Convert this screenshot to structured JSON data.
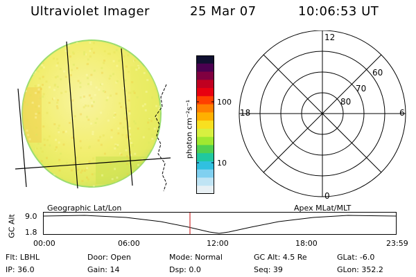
{
  "header": {
    "instrument": "Ultraviolet Imager",
    "date": "25 Mar 07",
    "time": "10:06:53 UT"
  },
  "colorbar": {
    "label": "photon cm⁻²s⁻¹",
    "ticks": [
      {
        "label": "100",
        "value": 100
      },
      {
        "label": "10",
        "value": 10
      }
    ],
    "colors": [
      "#101030",
      "#4b0050",
      "#800040",
      "#c00020",
      "#e80010",
      "#ff4000",
      "#ff8000",
      "#ffb000",
      "#f8e020",
      "#d8f040",
      "#a0e830",
      "#50d050",
      "#20c8a0",
      "#30c0e0",
      "#80d0f0",
      "#c0e4f4",
      "#e8f0f4"
    ]
  },
  "polar_grid": {
    "labels": [
      {
        "text": "12",
        "position": "top"
      },
      {
        "text": "0",
        "position": "bottom"
      },
      {
        "text": "18",
        "position": "left"
      },
      {
        "text": "6",
        "position": "right"
      },
      {
        "text": "60",
        "position": "outer-ring"
      },
      {
        "text": "70",
        "position": "middle-ring"
      },
      {
        "text": "80",
        "position": "inner-ring"
      }
    ]
  },
  "timeline": {
    "left_label": "Geographic Lat/Lon",
    "right_label": "Apex MLat/MLT",
    "y_axis_label": "GC Alt",
    "y_ticks": [
      "9.0",
      "1.8"
    ],
    "x_ticks": [
      "00:00",
      "06:00",
      "12:00",
      "18:00",
      "23:59"
    ],
    "current_time_marker": "10:06:53",
    "marker_color": "#d03030"
  },
  "info": {
    "row1": [
      {
        "text": "Flt: LBHL"
      },
      {
        "text": "Door: Open"
      },
      {
        "text": "Mode: Normal"
      },
      {
        "text": "GC Alt: 4.5 Re"
      },
      {
        "text": "GLat:  -6.0"
      }
    ],
    "row2": [
      {
        "text": "IP: 36.0"
      },
      {
        "text": "Gain: 14"
      },
      {
        "text": "Dsp:    0.0"
      },
      {
        "text": "Seq: 39"
      },
      {
        "text": "GLon: 352.2"
      }
    ]
  }
}
